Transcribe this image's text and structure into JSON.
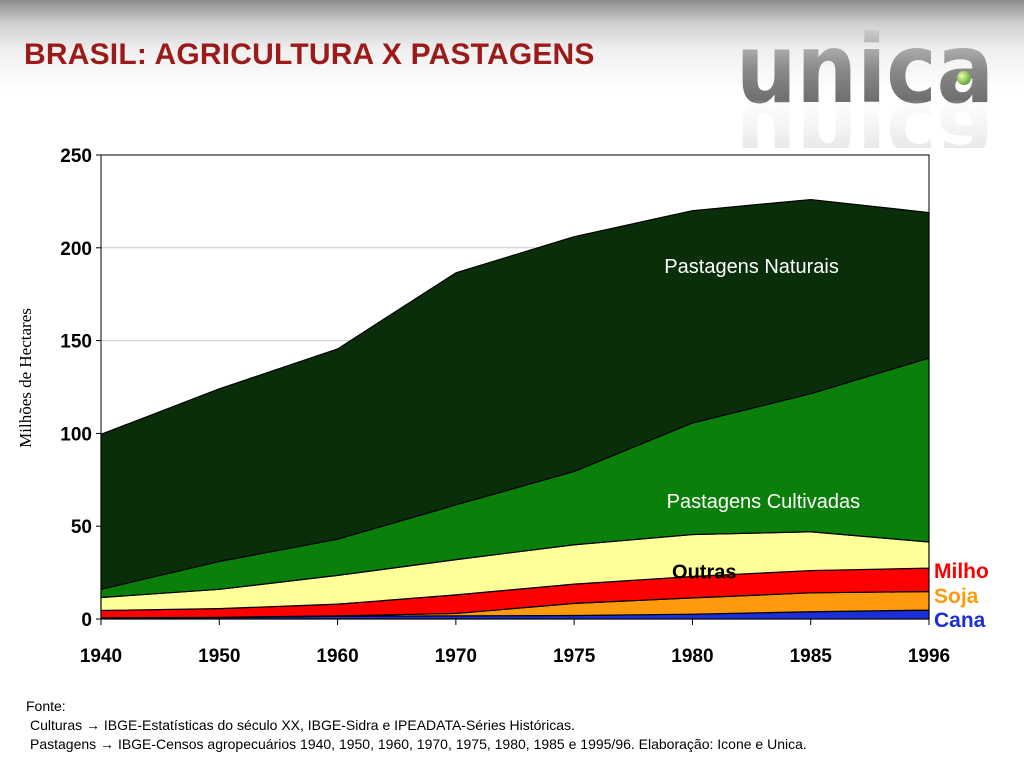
{
  "header": {
    "title": "BRASIL: AGRICULTURA X PASTAGENS",
    "logo_text": "unica"
  },
  "chart_data": {
    "type": "area",
    "stacked": true,
    "ylabel": "Milhões de Hectares",
    "ylim": [
      0,
      250
    ],
    "yticks": [
      0,
      50,
      100,
      150,
      200,
      250
    ],
    "grid": true,
    "categories": [
      "1940",
      "1950",
      "1960",
      "1970",
      "1975",
      "1980",
      "1985",
      "1996"
    ],
    "series": [
      {
        "name": "Cana",
        "color": "#1c2fd6",
        "values": [
          0.5,
          0.8,
          1.5,
          1.7,
          1.9,
          2.6,
          3.9,
          4.8
        ]
      },
      {
        "name": "Soja",
        "color": "#ff9a0c",
        "values": [
          0.1,
          0.1,
          0.2,
          1.3,
          6.5,
          8.8,
          10.2,
          10.0
        ]
      },
      {
        "name": "Milho",
        "color": "#ff0000",
        "values": [
          4.0,
          4.7,
          6.3,
          10.0,
          10.4,
          11.5,
          12.0,
          12.6
        ]
      },
      {
        "name": "Outras",
        "color": "#ffff99",
        "values": [
          7.0,
          10.4,
          15.5,
          19.0,
          21.2,
          22.6,
          20.9,
          14.1
        ]
      },
      {
        "name": "Pastagens Cultivadas",
        "color": "#0a800a",
        "values": [
          4.4,
          15.0,
          19.5,
          29.5,
          39.5,
          60.1,
          74.4,
          99.1
        ]
      },
      {
        "name": "Pastagens Naturais",
        "color": "#0a2d0a",
        "values": [
          83.5,
          93.0,
          102.5,
          125.0,
          126.5,
          114.4,
          104.6,
          78.4
        ]
      }
    ],
    "annotations": [
      {
        "text": "Pastagens Naturais",
        "series": "Pastagens Naturais"
      },
      {
        "text": "Pastagens Cultivadas",
        "series": "Pastagens Cultivadas"
      },
      {
        "text": "Outras",
        "series": "Outras"
      }
    ],
    "legend": {
      "placement": "right",
      "entries": [
        {
          "text": "Milho",
          "color": "#ff0000"
        },
        {
          "text": "Soja",
          "color": "#ff9a0c"
        },
        {
          "text": "Cana",
          "color": "#1c2fd6"
        }
      ]
    }
  },
  "source": {
    "label": "Fonte:",
    "culturas": "Culturas → IBGE-Estatísticas do século XX, IBGE-Sidra e IPEADATA-Séries Históricas.",
    "pastagens": "Pastagens → IBGE-Censos agropecuários 1940, 1950, 1960, 1970, 1975, 1980, 1985 e 1995/96. Elaboração: Icone e Unica."
  }
}
